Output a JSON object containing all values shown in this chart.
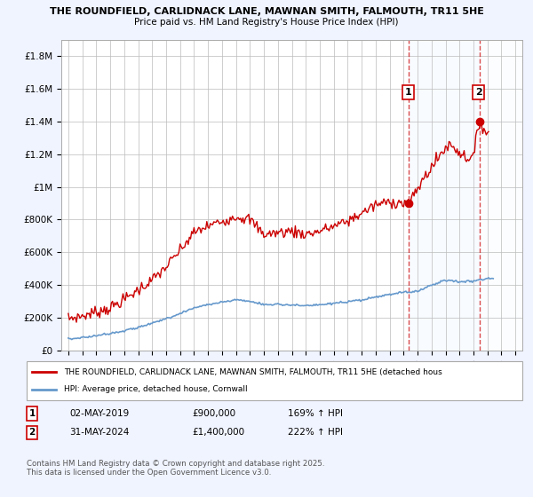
{
  "title_line1": "THE ROUNDFIELD, CARLIDNACK LANE, MAWNAN SMITH, FALMOUTH, TR11 5HE",
  "title_line2": "Price paid vs. HM Land Registry's House Price Index (HPI)",
  "bg_color": "#f0f4ff",
  "plot_bg_color": "#ffffff",
  "grid_color": "#bbbbbb",
  "red_color": "#cc0000",
  "blue_color": "#6699cc",
  "hatch_color": "#bbbbbb",
  "shade_color": "#ddeeff",
  "sale1_x": 2019.37,
  "sale1_y": 900000,
  "sale2_x": 2024.42,
  "sale2_y": 1400000,
  "sale1_date": "02-MAY-2019",
  "sale2_date": "31-MAY-2024",
  "sale1_price_str": "£900,000",
  "sale2_price_str": "£1,400,000",
  "sale1_hpi_str": "169% ↑ HPI",
  "sale2_hpi_str": "222% ↑ HPI",
  "legend_line1": "THE ROUNDFIELD, CARLIDNACK LANE, MAWNAN SMITH, FALMOUTH, TR11 5HE (detached hous",
  "legend_line2": "HPI: Average price, detached house, Cornwall",
  "footnote": "Contains HM Land Registry data © Crown copyright and database right 2025.\nThis data is licensed under the Open Government Licence v3.0.",
  "xlim": [
    1994.5,
    2027.5
  ],
  "ylim": [
    0,
    1900000
  ],
  "ytick_values": [
    0,
    200000,
    400000,
    600000,
    800000,
    1000000,
    1200000,
    1400000,
    1600000,
    1800000
  ],
  "ytick_labels": [
    "£0",
    "£200K",
    "£400K",
    "£600K",
    "£800K",
    "£1M",
    "£1.2M",
    "£1.4M",
    "£1.6M",
    "£1.8M"
  ]
}
